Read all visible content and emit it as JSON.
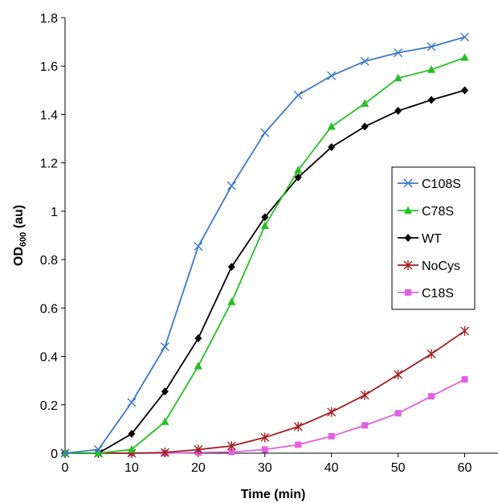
{
  "chart_data": {
    "type": "line",
    "title": "",
    "xlabel": "Time (min)",
    "ylabel_main": "OD",
    "ylabel_sub": "600",
    "ylabel_suffix": " (au)",
    "xlim": [
      0,
      65
    ],
    "ylim": [
      0,
      1.8
    ],
    "x_ticks": [
      0,
      10,
      20,
      30,
      40,
      50,
      60
    ],
    "x_tick_labels": [
      "0",
      "10",
      "20",
      "30",
      "40",
      "50",
      "60"
    ],
    "y_ticks": [
      0,
      0.2,
      0.4,
      0.6,
      0.8,
      1.0,
      1.2,
      1.4,
      1.6,
      1.8
    ],
    "y_tick_labels": [
      "0",
      "0.2",
      "0.4",
      "0.6",
      "0.8",
      "1",
      "1.2",
      "1.4",
      "1.6",
      "1.8"
    ],
    "grid": false,
    "legend_position": "right",
    "x": [
      0,
      5,
      10,
      15,
      20,
      25,
      30,
      35,
      40,
      45,
      50,
      55,
      60
    ],
    "series": [
      {
        "name": "C108S",
        "color": "#3b78c9",
        "marker": "x",
        "values": [
          0.0,
          0.015,
          0.21,
          0.44,
          0.855,
          1.105,
          1.325,
          1.48,
          1.56,
          1.62,
          1.655,
          1.68,
          1.72
        ]
      },
      {
        "name": "C78S",
        "color": "#22c222",
        "marker": "triangle",
        "values": [
          0.0,
          0.0,
          0.015,
          0.13,
          0.36,
          0.625,
          0.94,
          1.17,
          1.35,
          1.445,
          1.55,
          1.585,
          1.635
        ]
      },
      {
        "name": "WT",
        "color": "#000000",
        "marker": "diamond",
        "values": [
          0.0,
          0.0,
          0.08,
          0.255,
          0.475,
          0.77,
          0.975,
          1.14,
          1.265,
          1.35,
          1.415,
          1.46,
          1.5
        ]
      },
      {
        "name": "NoCys",
        "color": "#a31d1d",
        "marker": "asterisk",
        "values": [
          0.0,
          0.0,
          0.0,
          0.003,
          0.015,
          0.03,
          0.065,
          0.11,
          0.17,
          0.24,
          0.325,
          0.41,
          0.505
        ]
      },
      {
        "name": "C18S",
        "color": "#e060e0",
        "marker": "square",
        "values": [
          0.0,
          0.0,
          0.0,
          0.0,
          0.003,
          0.005,
          0.015,
          0.035,
          0.07,
          0.115,
          0.165,
          0.235,
          0.305
        ]
      }
    ]
  }
}
